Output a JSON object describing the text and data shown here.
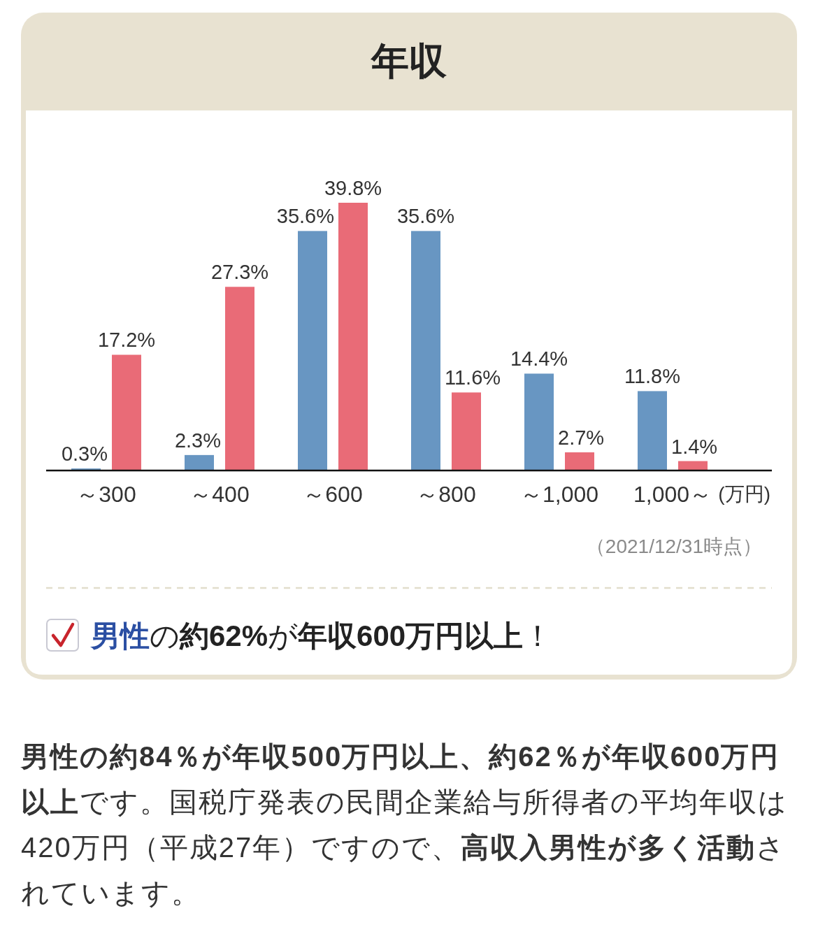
{
  "chart_data": {
    "type": "bar",
    "title": "年収",
    "categories": [
      "～300",
      "～400",
      "～600",
      "～800",
      "～1,000",
      "1,000～"
    ],
    "xlabel": "(万円)",
    "series": [
      {
        "color": "#6896c2",
        "values": [
          0.3,
          2.3,
          35.6,
          35.6,
          14.4,
          11.8
        ],
        "value_labels": [
          "0.3%",
          "2.3%",
          "35.6%",
          "35.6%",
          "14.4%",
          "11.8%"
        ]
      },
      {
        "color": "#e96b77",
        "values": [
          17.2,
          27.3,
          39.8,
          11.6,
          2.7,
          1.4
        ],
        "value_labels": [
          "17.2%",
          "27.3%",
          "39.8%",
          "11.6%",
          "2.7%",
          "1.4%"
        ]
      }
    ],
    "annotations": [
      "（2021/12/31時点）",
      "**男性**の**約62%**が**年収600万円以上**！",
      "**男性の約84％が年収500万円以上、約62％が年収600万円以上**です。国税庁発表の民間企業給与所得者の平均年収は420万円（平成27年）ですので、**高収入男性が多く活動**されています。"
    ]
  }
}
